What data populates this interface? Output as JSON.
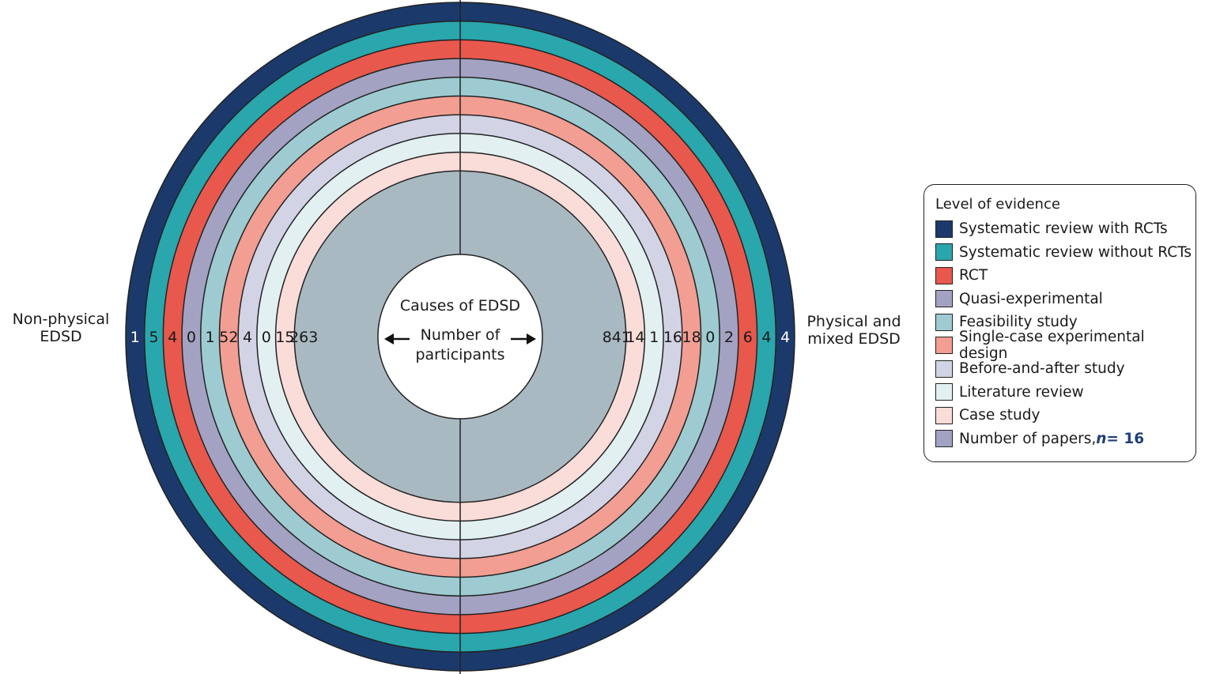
{
  "center_text": {
    "title": "Causes of EDSD",
    "subtitle_line1": "Number of",
    "subtitle_line2": "participants"
  },
  "left_label": [
    "Non-physical",
    "EDSD"
  ],
  "right_label": [
    "Physical and",
    "mixed EDSD"
  ],
  "rings": [
    {
      "name": "Systematic review with RCTs",
      "color": "#1b3a6b",
      "left": "1",
      "right": "4"
    },
    {
      "name": "Systematic review without RCTs",
      "color": "#2aa6ad",
      "left": "5",
      "right": "4"
    },
    {
      "name": "RCT",
      "color": "#e8584c",
      "left": "4",
      "right": "6"
    },
    {
      "name": "Quasi-experimental",
      "color": "#a3a2c2",
      "left": "0",
      "right": "2"
    },
    {
      "name": "Feasibility study",
      "color": "#9dcbd1",
      "left": "1",
      "right": "0"
    },
    {
      "name": "Single-case experimental design",
      "color": "#f29e92",
      "left": "52",
      "right": "18"
    },
    {
      "name": "Before-and-after study",
      "color": "#d3d3e6",
      "left": "4",
      "right": "16"
    },
    {
      "name": "Literature review",
      "color": "#e2f0f1",
      "left": "0",
      "right": "1"
    },
    {
      "name": "Case study",
      "color": "#fadcd8",
      "left": "15",
      "right": "14"
    },
    {
      "name": "Number of papers",
      "color": "#a9b9c1",
      "left": "263",
      "right": "841"
    }
  ],
  "legend": {
    "title": "Level of evidence",
    "items": [
      {
        "label": "Systematic review with RCTs",
        "color": "#1b3a6b"
      },
      {
        "label": "Systematic review without RCTs",
        "color": "#2aa6ad"
      },
      {
        "label": "RCT",
        "color": "#e8584c"
      },
      {
        "label": "Quasi-experimental",
        "color": "#a3a2c2"
      },
      {
        "label": "Feasibility study",
        "color": "#9dcbd1"
      },
      {
        "label": "Single-case experimental design",
        "color": "#f29e92"
      },
      {
        "label": "Before-and-after study",
        "color": "#d3d3e6"
      },
      {
        "label": "Literature review",
        "color": "#e2f0f1"
      },
      {
        "label": "Case study",
        "color": "#fadcd8"
      }
    ],
    "papers_item": {
      "label": "Number of papers, ",
      "n_symbol": "n",
      "n_value": " = 16",
      "color": "#a3a2c2"
    }
  }
}
